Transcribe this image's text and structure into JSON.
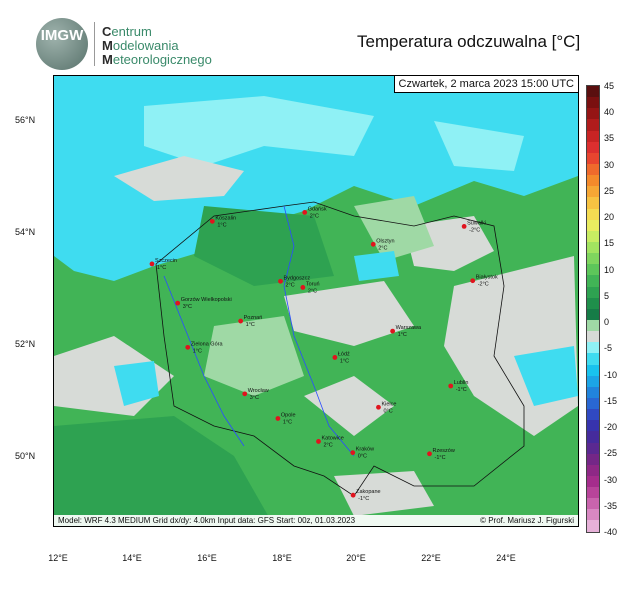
{
  "header": {
    "logo_text": "IMGW",
    "org_lines": [
      {
        "initial": "C",
        "rest": "entrum"
      },
      {
        "initial": "M",
        "rest": "odelowania"
      },
      {
        "initial": "M",
        "rest": "eteorologicznego"
      }
    ],
    "title": "Temperatura odczuwalna [°C]"
  },
  "map": {
    "date_label": "Czwartek, 2 marca 2023 15:00 UTC",
    "footer_left": "Model: WRF 4.3 MEDIUM   Grid dx/dy: 4.0km   Input data: GFS   Start: 00z, 01.03.2023",
    "footer_right": "© Prof. Mariusz J. Figurski",
    "lat_labels": [
      "56°N",
      "54°N",
      "52°N",
      "50°N"
    ],
    "lon_labels": [
      "12°E",
      "14°E",
      "16°E",
      "18°E",
      "20°E",
      "22°E",
      "24°E"
    ],
    "cities": [
      {
        "name": "Koszalin",
        "temp": "1°C",
        "lat": 54.19,
        "lon": 16.17
      },
      {
        "name": "Gdańsk",
        "temp": "2°C",
        "lat": 54.35,
        "lon": 18.65
      },
      {
        "name": "Olsztyn",
        "temp": "2°C",
        "lat": 53.78,
        "lon": 20.49
      },
      {
        "name": "Suwałki",
        "temp": "-2°C",
        "lat": 54.1,
        "lon": 22.93
      },
      {
        "name": "Szczecin",
        "temp": "1°C",
        "lat": 53.43,
        "lon": 14.55
      },
      {
        "name": "Bydgoszcz",
        "temp": "2°C",
        "lat": 53.12,
        "lon": 18.0
      },
      {
        "name": "Toruń",
        "temp": "2°C",
        "lat": 53.01,
        "lon": 18.6
      },
      {
        "name": "Białystok",
        "temp": "-2°C",
        "lat": 53.13,
        "lon": 23.16
      },
      {
        "name": "Gorzów Wielkopolski",
        "temp": "3°C",
        "lat": 52.73,
        "lon": 15.24
      },
      {
        "name": "Poznań",
        "temp": "1°C",
        "lat": 52.41,
        "lon": 16.93
      },
      {
        "name": "Warszawa",
        "temp": "1°C",
        "lat": 52.23,
        "lon": 21.01
      },
      {
        "name": "Zielona Góra",
        "temp": "1°C",
        "lat": 51.94,
        "lon": 15.51
      },
      {
        "name": "Łódź",
        "temp": "1°C",
        "lat": 51.76,
        "lon": 19.46
      },
      {
        "name": "Lublin",
        "temp": "-1°C",
        "lat": 51.25,
        "lon": 22.57
      },
      {
        "name": "Wrocław",
        "temp": "3°C",
        "lat": 51.11,
        "lon": 17.04
      },
      {
        "name": "Kielce",
        "temp": "0°C",
        "lat": 50.87,
        "lon": 20.63
      },
      {
        "name": "Opole",
        "temp": "1°C",
        "lat": 50.67,
        "lon": 17.93
      },
      {
        "name": "Katowice",
        "temp": "2°C",
        "lat": 50.26,
        "lon": 19.02
      },
      {
        "name": "Kraków",
        "temp": "0°C",
        "lat": 50.06,
        "lon": 19.94
      },
      {
        "name": "Rzeszów",
        "temp": "-1°C",
        "lat": 50.04,
        "lon": 22.0
      },
      {
        "name": "Zakopane",
        "temp": "-1°C",
        "lat": 49.3,
        "lon": 19.95
      }
    ]
  },
  "colorbar": {
    "labels": [
      "45",
      "40",
      "35",
      "30",
      "25",
      "20",
      "15",
      "10",
      "5",
      "0",
      "-5",
      "-10",
      "-15",
      "-20",
      "-25",
      "-30",
      "-35",
      "-40"
    ],
    "colors": [
      "#5a0f0f",
      "#7a1010",
      "#951515",
      "#b01c1c",
      "#c82424",
      "#dc2f2f",
      "#e8452f",
      "#ef6a2c",
      "#f48a2b",
      "#f6a735",
      "#f7c342",
      "#f5dc52",
      "#e9ec60",
      "#c8ec62",
      "#a2e360",
      "#7fd55e",
      "#5dc65a",
      "#41b456",
      "#2ea251",
      "#1f8f4b",
      "#167c47",
      "#9fd9a5",
      "#d7dbd7",
      "#8ff1f5",
      "#3fdcf0",
      "#19c3ee",
      "#1ca5e6",
      "#2184dc",
      "#2967d3",
      "#3049c2",
      "#3733ad",
      "#452b9c",
      "#5a2991",
      "#742787",
      "#8e2886",
      "#a52d8c",
      "#b8449a",
      "#c964ad",
      "#d888c2",
      "#e6b1d8"
    ]
  }
}
